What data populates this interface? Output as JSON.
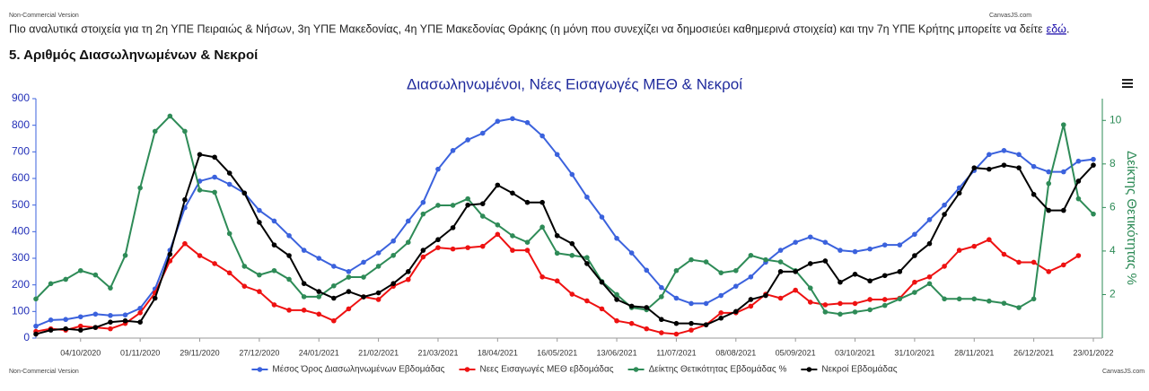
{
  "page": {
    "top_watermark": "Non-Commercial Version",
    "top_brand": "CanvasJS.com",
    "intro_text": "Πιο αναλυτικά στοιχεία για τη 2η ΥΠΕ Πειραιώς & Νήσων, 3η ΥΠΕ Μακεδονίας, 4η ΥΠΕ Μακεδονίας Θράκης (η μόνη που συνεχίζει να δημοσιεύει καθημερινά στοιχεία) και την 7η ΥΠΕ Κρήτης μπορείτε να δείτε",
    "intro_link": "εδώ",
    "intro_end": ".",
    "heading": "5. Αριθμός Διασωληνωμένων & Νεκροί",
    "bottom_watermark": "Non-Commercial Version",
    "bottom_brand": "CanvasJS.com"
  },
  "chart_data": {
    "type": "line",
    "title": "Διασωληνωμένοι, Νέες Εισαγωγές ΜΕΘ & Νεκροί",
    "y2_title": "Δείκτης Θετικότητας %",
    "categories": [
      null,
      null,
      null,
      "04/10/2020",
      null,
      null,
      null,
      "01/11/2020",
      null,
      null,
      null,
      "29/11/2020",
      null,
      null,
      null,
      "27/12/2020",
      null,
      null,
      null,
      "24/01/2021",
      null,
      null,
      null,
      "21/02/2021",
      null,
      null,
      null,
      "21/03/2021",
      null,
      null,
      null,
      "18/04/2021",
      null,
      null,
      null,
      "16/05/2021",
      null,
      null,
      null,
      "13/06/2021",
      null,
      null,
      null,
      "11/07/2021",
      null,
      null,
      null,
      "08/08/2021",
      null,
      null,
      null,
      "05/09/2021",
      null,
      null,
      null,
      "03/10/2021",
      null,
      null,
      null,
      "31/10/2021",
      null,
      null,
      null,
      "28/11/2021",
      null,
      null,
      null,
      "26/12/2021",
      null,
      null,
      null,
      "23/01/2022"
    ],
    "ylim": [
      0,
      900
    ],
    "yticks": [
      0,
      100,
      200,
      300,
      400,
      500,
      600,
      700,
      800,
      900
    ],
    "y2lim": [
      0,
      11
    ],
    "y2ticks": [
      2,
      4,
      6,
      8,
      10
    ],
    "grid": false,
    "legend": "bottom",
    "series": [
      {
        "name": "Μέσος Όρος Διασωληνωμένων Εβδομάδας",
        "color": "#3b62dd",
        "values": [
          45,
          68,
          70,
          80,
          90,
          85,
          87,
          112,
          185,
          330,
          490,
          590,
          605,
          578,
          545,
          480,
          440,
          385,
          330,
          300,
          270,
          250,
          285,
          320,
          365,
          440,
          510,
          635,
          705,
          745,
          770,
          815,
          825,
          810,
          760,
          690,
          615,
          530,
          455,
          375,
          320,
          255,
          190,
          150,
          130,
          130,
          160,
          195,
          230,
          285,
          330,
          360,
          380,
          360,
          330,
          325,
          335,
          350,
          350,
          390,
          445,
          500,
          565,
          630,
          690,
          705,
          690,
          645,
          625,
          625,
          665,
          672
        ]
      },
      {
        "name": "Νεες Εισαγωγές ΜΕΘ εβδομάδας",
        "color": "#ee1111",
        "values": [
          25,
          35,
          30,
          45,
          40,
          35,
          55,
          95,
          170,
          290,
          355,
          310,
          280,
          245,
          195,
          175,
          125,
          105,
          105,
          90,
          65,
          110,
          155,
          145,
          195,
          220,
          305,
          340,
          335,
          340,
          345,
          390,
          330,
          330,
          230,
          215,
          165,
          140,
          110,
          65,
          55,
          35,
          20,
          15,
          30,
          50,
          95,
          95,
          120,
          165,
          150,
          180,
          135,
          125,
          130,
          130,
          145,
          145,
          150,
          210,
          230,
          270,
          330,
          345,
          370,
          315,
          285,
          285,
          250,
          275,
          310,
          null
        ]
      },
      {
        "name": "Δείκτης Θετικότητας Εβδομάδας %",
        "color": "#2e8b57",
        "axis": "y2",
        "values": [
          1.8,
          2.5,
          2.7,
          3.1,
          2.9,
          2.3,
          3.8,
          6.9,
          9.5,
          10.2,
          9.5,
          6.8,
          6.7,
          4.8,
          3.3,
          2.9,
          3.1,
          2.7,
          1.9,
          1.9,
          2.4,
          2.8,
          2.8,
          3.3,
          3.8,
          4.4,
          5.7,
          6.1,
          6.1,
          6.4,
          5.6,
          5.2,
          4.7,
          4.4,
          5.1,
          3.9,
          3.8,
          3.7,
          2.6,
          2.0,
          1.4,
          1.3,
          1.9,
          3.1,
          3.6,
          3.5,
          3.0,
          3.1,
          3.8,
          3.6,
          3.5,
          3.1,
          2.3,
          1.2,
          1.1,
          1.2,
          1.3,
          1.5,
          1.8,
          2.1,
          2.5,
          1.8,
          1.8,
          1.8,
          1.7,
          1.6,
          1.4,
          1.8,
          7.1,
          9.8,
          6.4,
          5.7
        ]
      },
      {
        "name": "Νεκροί Εβδομάδας",
        "color": "#000000",
        "values": [
          15,
          30,
          35,
          30,
          40,
          60,
          65,
          60,
          150,
          315,
          520,
          690,
          680,
          620,
          545,
          435,
          350,
          310,
          205,
          175,
          150,
          175,
          155,
          170,
          205,
          250,
          330,
          370,
          415,
          500,
          505,
          575,
          545,
          510,
          510,
          385,
          355,
          280,
          210,
          145,
          120,
          115,
          70,
          55,
          55,
          50,
          75,
          100,
          145,
          160,
          250,
          250,
          280,
          290,
          210,
          240,
          215,
          235,
          250,
          310,
          355,
          465,
          545,
          640,
          635,
          650,
          640,
          540,
          480,
          480,
          590,
          650
        ]
      }
    ]
  }
}
